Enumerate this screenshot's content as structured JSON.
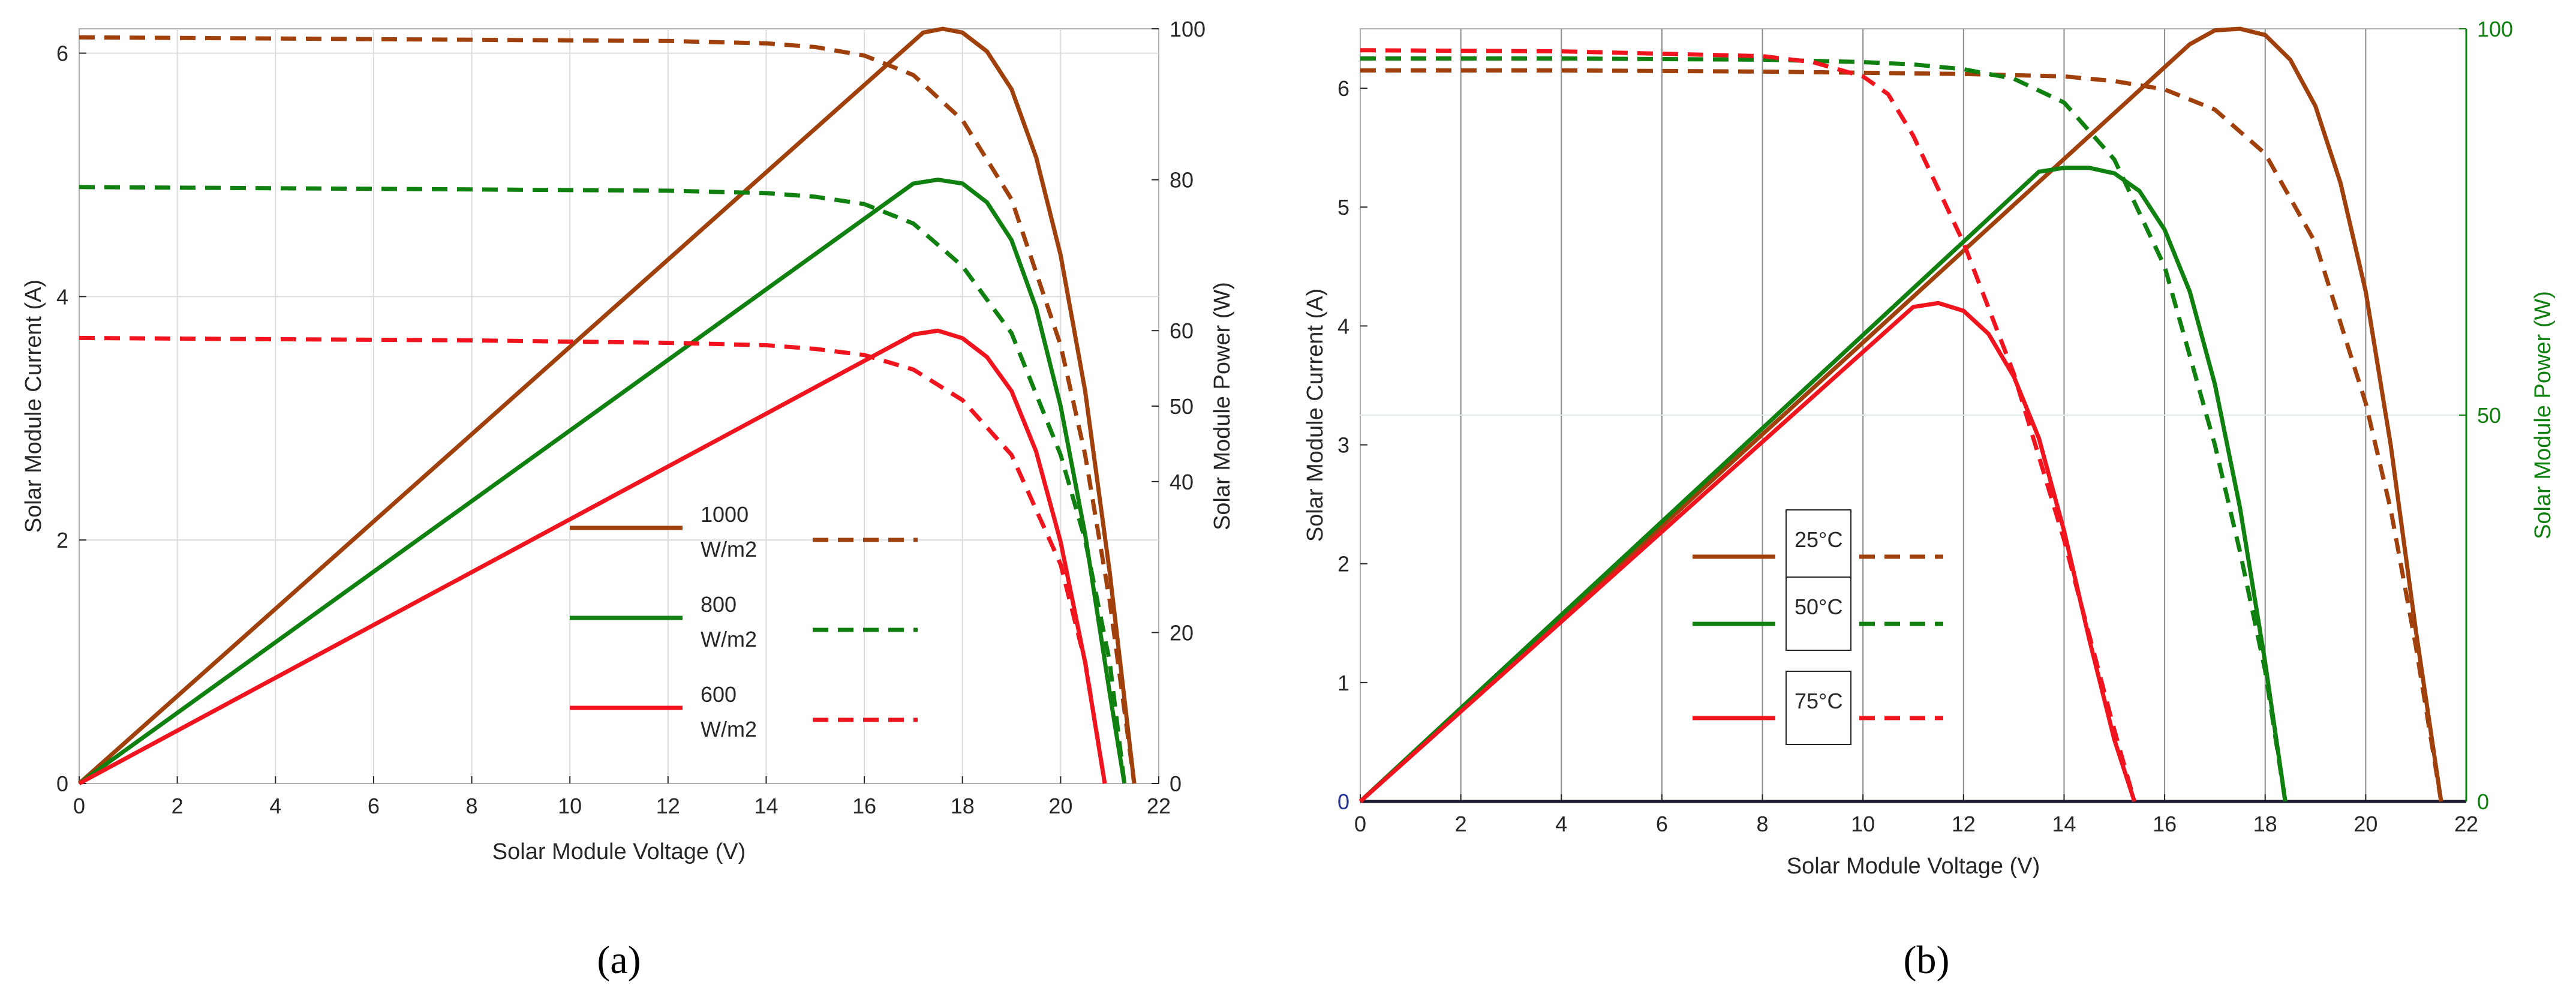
{
  "chart_data": [
    {
      "type": "line",
      "caption": "(a)",
      "xlabel": "Solar Module Voltage (V)",
      "ylabel": "Solar Module Current (A)",
      "y2label": "Solar Module Power (W)",
      "xlim": [
        0,
        22
      ],
      "ylim": [
        0,
        6.2
      ],
      "y2lim": [
        0,
        100
      ],
      "xticks": [
        0,
        2,
        4,
        6,
        8,
        10,
        12,
        14,
        16,
        18,
        20,
        22
      ],
      "yticks": [
        0,
        2,
        4,
        6
      ],
      "y2ticks": [
        0,
        20,
        40,
        50,
        60,
        80,
        100
      ],
      "grid": true,
      "legend_position": "center-right",
      "series": [
        {
          "name": "1000 W/m2",
          "legend_lines": [
            "1000",
            "W/m2"
          ],
          "color": "#a0410d",
          "power_W": {
            "x": [
              0,
              17.2,
              17.6,
              18.0,
              18.5,
              19.0,
              19.5,
              20.0,
              20.5,
              21.0,
              21.5
            ],
            "y": [
              0,
              99.5,
              100,
              99.5,
              97,
              92,
              83,
              70,
              52,
              28,
              0
            ]
          },
          "current_A": {
            "x": [
              0,
              4,
              8,
              12,
              14,
              15,
              16,
              17,
              18,
              19,
              20,
              20.5,
              21,
              21.5
            ],
            "y": [
              6.13,
              6.12,
              6.11,
              6.1,
              6.08,
              6.05,
              5.98,
              5.82,
              5.45,
              4.8,
              3.6,
              2.7,
              1.5,
              0
            ]
          }
        },
        {
          "name": "800 W/m2",
          "legend_lines": [
            "800",
            "W/m2"
          ],
          "color": "#108010",
          "power_W": {
            "x": [
              0,
              17.0,
              17.5,
              18.0,
              18.5,
              19.0,
              19.5,
              20.0,
              20.5,
              21.0,
              21.3
            ],
            "y": [
              0,
              79.5,
              80,
              79.5,
              77,
              72,
              63,
              50,
              33,
              12,
              0
            ]
          },
          "current_A": {
            "x": [
              0,
              4,
              8,
              12,
              14,
              15,
              16,
              17,
              18,
              19,
              20,
              20.5,
              21,
              21.3
            ],
            "y": [
              4.9,
              4.89,
              4.88,
              4.87,
              4.85,
              4.82,
              4.76,
              4.6,
              4.25,
              3.7,
              2.7,
              2.0,
              1.0,
              0
            ]
          }
        },
        {
          "name": "600 W/m2",
          "legend_lines": [
            "600",
            "W/m2"
          ],
          "color": "#f0141e",
          "power_W": {
            "x": [
              0,
              17.0,
              17.5,
              18.0,
              18.5,
              19.0,
              19.5,
              20.0,
              20.5,
              20.9
            ],
            "y": [
              0,
              59.5,
              60,
              59,
              56.5,
              52,
              44,
              32,
              16,
              0
            ]
          },
          "current_A": {
            "x": [
              0,
              4,
              8,
              12,
              14,
              15,
              16,
              17,
              18,
              19,
              20,
              20.5,
              20.9
            ],
            "y": [
              3.66,
              3.65,
              3.64,
              3.62,
              3.6,
              3.57,
              3.52,
              3.4,
              3.15,
              2.7,
              1.8,
              1.0,
              0
            ]
          }
        }
      ]
    },
    {
      "type": "line",
      "caption": "(b)",
      "xlabel": "Solar Module Voltage (V)",
      "ylabel": "Solar Module Current (A)",
      "y2label": "Solar Module Power (W)",
      "xlim": [
        0,
        22
      ],
      "ylim": [
        0,
        6.5
      ],
      "y2lim": [
        0,
        100
      ],
      "xticks": [
        0,
        2,
        4,
        6,
        8,
        10,
        12,
        14,
        16,
        18,
        20,
        22
      ],
      "yticks": [
        0,
        1,
        2,
        3,
        4,
        5,
        6
      ],
      "y2ticks": [
        0,
        50,
        100
      ],
      "grid": true,
      "legend_position": "center-left",
      "series": [
        {
          "name": "25°C",
          "color": "#a0410d",
          "power_W": {
            "x": [
              0,
              16.5,
              17.0,
              17.5,
              18.0,
              18.5,
              19.0,
              19.5,
              20.0,
              20.5,
              21.0,
              21.5
            ],
            "y": [
              0,
              98,
              99.8,
              100,
              99.2,
              96,
              90,
              80,
              66,
              46,
              22,
              0
            ]
          },
          "current_A": {
            "x": [
              0,
              4,
              8,
              12,
              14,
              15,
              16,
              17,
              18,
              19,
              20,
              20.5,
              21,
              21.5
            ],
            "y": [
              6.15,
              6.15,
              6.14,
              6.12,
              6.1,
              6.06,
              5.99,
              5.82,
              5.45,
              4.7,
              3.35,
              2.45,
              1.3,
              0
            ]
          }
        },
        {
          "name": "50°C",
          "color": "#108010",
          "power_W": {
            "x": [
              0,
              13.5,
              14.0,
              14.5,
              15.0,
              15.5,
              16.0,
              16.5,
              17.0,
              17.5,
              18.0,
              18.4
            ],
            "y": [
              0,
              81.5,
              82,
              82,
              81.3,
              79,
              74,
              66,
              54,
              38,
              18,
              0
            ]
          },
          "current_A": {
            "x": [
              0,
              4,
              8,
              10,
              11,
              12,
              13,
              14,
              15,
              16,
              17,
              17.5,
              18,
              18.4
            ],
            "y": [
              6.25,
              6.25,
              6.24,
              6.22,
              6.2,
              6.16,
              6.08,
              5.88,
              5.4,
              4.5,
              3.0,
              2.1,
              1.1,
              0
            ]
          }
        },
        {
          "name": "75°C",
          "color": "#f0141e",
          "power_W": {
            "x": [
              0,
              11.0,
              11.5,
              12.0,
              12.5,
              13.0,
              13.5,
              14.0,
              14.5,
              15.0,
              15.4
            ],
            "y": [
              0,
              64,
              64.5,
              63.5,
              60.5,
              55,
              47,
              35,
              21,
              8,
              0
            ]
          },
          "current_A": {
            "x": [
              0,
              4,
              8,
              9,
              10,
              10.5,
              11,
              12,
              13,
              14,
              14.5,
              15,
              15.4
            ],
            "y": [
              6.32,
              6.31,
              6.27,
              6.22,
              6.1,
              5.95,
              5.6,
              4.7,
              3.6,
              2.2,
              1.4,
              0.6,
              0
            ]
          }
        }
      ]
    }
  ]
}
